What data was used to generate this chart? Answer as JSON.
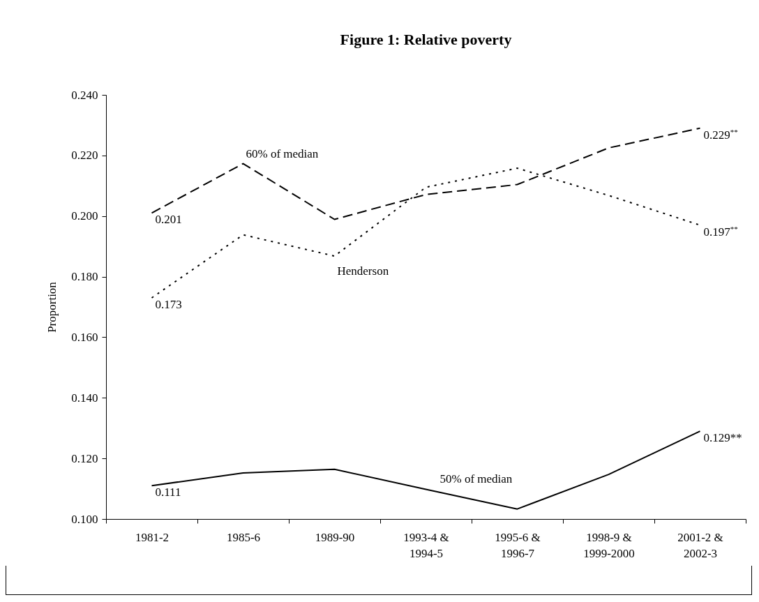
{
  "chart_data": {
    "type": "line",
    "title": "Figure 1: Relative poverty",
    "ylabel": "Proportion",
    "categories": [
      "1981-2",
      "1985-6",
      "1989-90",
      "1993-4 &\n1994-5",
      "1995-6 &\n1996-7",
      "1998-9 &\n1999-2000",
      "2001-2 &\n2002-3"
    ],
    "ylim": [
      0.1,
      0.24
    ],
    "yticks": [
      {
        "value": 0.1,
        "label": "0.100"
      },
      {
        "value": 0.12,
        "label": "0.120"
      },
      {
        "value": 0.14,
        "label": "0.140"
      },
      {
        "value": 0.16,
        "label": "0.160"
      },
      {
        "value": 0.18,
        "label": "0.180"
      },
      {
        "value": 0.2,
        "label": "0.200"
      },
      {
        "value": 0.22,
        "label": "0.220"
      },
      {
        "value": 0.24,
        "label": "0.240"
      }
    ],
    "grid": false,
    "marker": "none",
    "series": [
      {
        "name": "60% of median",
        "color": "#000000",
        "line_style": "dashed",
        "values": [
          0.201,
          0.2173,
          0.1989,
          0.2071,
          0.2104,
          0.2225,
          0.229
        ],
        "value_labels": [
          "0.201",
          null,
          null,
          null,
          null,
          null,
          "0.229$^{**}$"
        ]
      },
      {
        "name": "Henderson",
        "color": "#000000",
        "line_style": "dotted",
        "values": [
          0.173,
          0.1938,
          0.1868,
          0.2095,
          0.2158,
          0.2068,
          0.197
        ],
        "value_labels": [
          "0.173",
          null,
          null,
          null,
          null,
          null,
          "0.197$^{**}$"
        ]
      },
      {
        "name": "50% of median",
        "color": "#000000",
        "line_style": "solid",
        "values": [
          0.111,
          0.1152,
          0.1164,
          0.1098,
          0.1033,
          0.1147,
          0.129
        ],
        "value_labels": [
          "0.111",
          null,
          null,
          null,
          null,
          null,
          "0.129**"
        ]
      }
    ]
  }
}
